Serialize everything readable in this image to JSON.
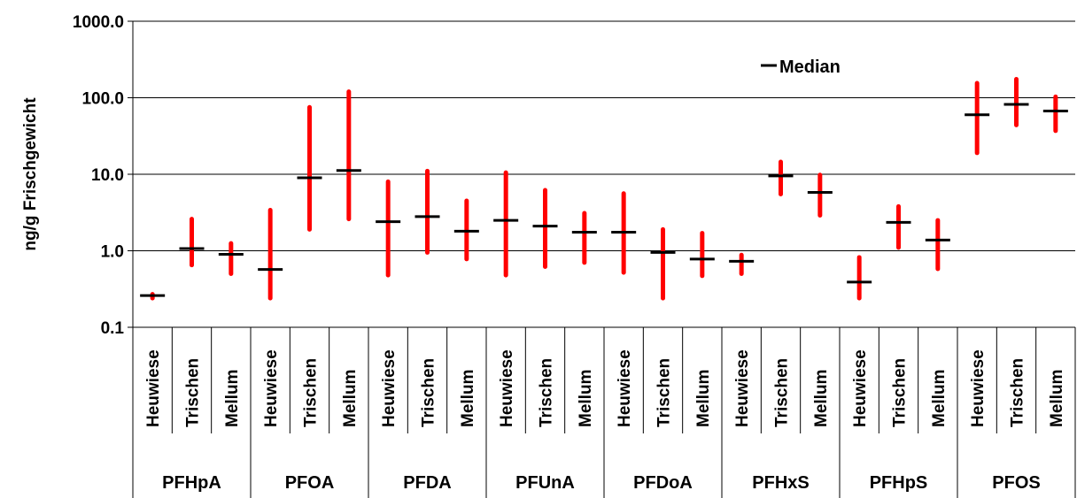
{
  "chart_data": {
    "type": "range-bar with median markers",
    "ylabel": "ng/g Frischgewicht",
    "yscale": "log",
    "ylim": [
      0.1,
      1000
    ],
    "yticks": [
      "0.1",
      "1.0",
      "10.0",
      "100.0",
      "1000.0"
    ],
    "grid": "horizontal",
    "legend": {
      "label": "Median",
      "position": "top-right"
    },
    "colors": {
      "range": "#ff0000",
      "median": "#000000"
    },
    "sites": [
      "Heuwiese",
      "Trischen",
      "Mellum"
    ],
    "groups": [
      {
        "name": "PFHpA",
        "points": [
          {
            "site": "Heuwiese",
            "min": 0.24,
            "max": 0.27,
            "median": 0.26
          },
          {
            "site": "Trischen",
            "min": 0.65,
            "max": 2.6,
            "median": 1.07
          },
          {
            "site": "Mellum",
            "min": 0.5,
            "max": 1.25,
            "median": 0.9
          }
        ]
      },
      {
        "name": "PFOA",
        "points": [
          {
            "site": "Heuwiese",
            "min": 0.24,
            "max": 3.4,
            "median": 0.57
          },
          {
            "site": "Trischen",
            "min": 1.9,
            "max": 75,
            "median": 9.0
          },
          {
            "site": "Mellum",
            "min": 2.6,
            "max": 120,
            "median": 11.2
          }
        ]
      },
      {
        "name": "PFDA",
        "points": [
          {
            "site": "Heuwiese",
            "min": 0.48,
            "max": 8.0,
            "median": 2.4
          },
          {
            "site": "Trischen",
            "min": 0.95,
            "max": 11.0,
            "median": 2.8
          },
          {
            "site": "Mellum",
            "min": 0.78,
            "max": 4.5,
            "median": 1.8
          }
        ]
      },
      {
        "name": "PFUnA",
        "points": [
          {
            "site": "Heuwiese",
            "min": 0.48,
            "max": 10.5,
            "median": 2.5
          },
          {
            "site": "Trischen",
            "min": 0.62,
            "max": 6.2,
            "median": 2.1
          },
          {
            "site": "Mellum",
            "min": 0.7,
            "max": 3.1,
            "median": 1.75
          }
        ]
      },
      {
        "name": "PFDoA",
        "points": [
          {
            "site": "Heuwiese",
            "min": 0.52,
            "max": 5.6,
            "median": 1.75
          },
          {
            "site": "Trischen",
            "min": 0.24,
            "max": 1.9,
            "median": 0.95
          },
          {
            "site": "Mellum",
            "min": 0.47,
            "max": 1.7,
            "median": 0.78
          }
        ]
      },
      {
        "name": "PFHxS",
        "points": [
          {
            "site": "Heuwiese",
            "min": 0.5,
            "max": 0.88,
            "median": 0.73
          },
          {
            "site": "Trischen",
            "min": 5.5,
            "max": 14.5,
            "median": 9.5
          },
          {
            "site": "Mellum",
            "min": 2.9,
            "max": 9.8,
            "median": 5.8
          }
        ]
      },
      {
        "name": "PFHpS",
        "points": [
          {
            "site": "Heuwiese",
            "min": 0.24,
            "max": 0.82,
            "median": 0.39
          },
          {
            "site": "Trischen",
            "min": 1.1,
            "max": 3.8,
            "median": 2.35
          },
          {
            "site": "Mellum",
            "min": 0.58,
            "max": 2.5,
            "median": 1.38
          }
        ]
      },
      {
        "name": "PFOS",
        "points": [
          {
            "site": "Heuwiese",
            "min": 19,
            "max": 155,
            "median": 60
          },
          {
            "site": "Trischen",
            "min": 44,
            "max": 175,
            "median": 82
          },
          {
            "site": "Mellum",
            "min": 37,
            "max": 103,
            "median": 67
          }
        ]
      }
    ]
  }
}
